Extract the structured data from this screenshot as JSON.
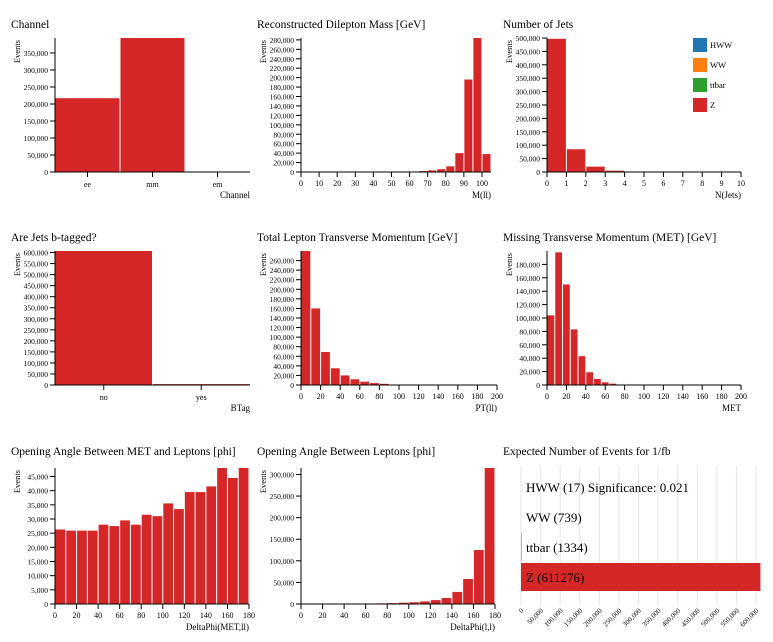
{
  "colors": {
    "HWW": "#1f77b4",
    "WW": "#ff7f0e",
    "ttbar": "#2ca02c",
    "Z": "#d62728",
    "bg_bar": "#dddddd"
  },
  "legend": [
    {
      "name": "HWW",
      "color": "#1f77b4"
    },
    {
      "name": "WW",
      "color": "#ff7f0e"
    },
    {
      "name": "ttbar",
      "color": "#2ca02c"
    },
    {
      "name": "Z",
      "color": "#d62728"
    }
  ],
  "chart_data": [
    {
      "id": "channel",
      "type": "bar",
      "title": "Channel",
      "xlabel": "Channel",
      "ylabel": "Events",
      "categories": [
        "ee",
        "mm",
        "em"
      ],
      "values": [
        217000,
        394000,
        0
      ],
      "ylim": [
        0,
        394000
      ],
      "yticks": [
        0,
        50000,
        100000,
        150000,
        200000,
        250000,
        300000,
        350000
      ],
      "yticklabels": [
        "0",
        "50,000",
        "100,000",
        "150,000",
        "200,000",
        "250,000",
        "300,000",
        "350,000"
      ]
    },
    {
      "id": "mll",
      "type": "bar",
      "title": "Reconstructed Dilepton Mass [GeV]",
      "xlabel": "M(ll)",
      "ylabel": "Events",
      "bin_edges": [
        0,
        5,
        10,
        15,
        20,
        25,
        30,
        35,
        40,
        45,
        50,
        55,
        60,
        65,
        70,
        75,
        80,
        85,
        90,
        95,
        100,
        105
      ],
      "values": [
        0,
        0,
        0,
        0,
        0,
        0,
        0,
        0,
        0,
        0,
        0,
        300,
        1000,
        2000,
        3500,
        6000,
        12000,
        40000,
        196000,
        284000,
        38000,
        11000
      ],
      "values_count_note": "",
      "xlim": [
        0,
        105
      ],
      "ylim": [
        0,
        284000
      ],
      "xticks": [
        0,
        10,
        20,
        30,
        40,
        50,
        60,
        70,
        80,
        90,
        100
      ],
      "xticklabels": [
        "0",
        "10",
        "20",
        "30",
        "40",
        "50",
        "60",
        "70",
        "80",
        "90",
        "100"
      ],
      "yticks": [
        0,
        20000,
        40000,
        60000,
        80000,
        100000,
        120000,
        140000,
        160000,
        180000,
        200000,
        220000,
        240000,
        260000,
        280000
      ],
      "yticklabels": [
        "0",
        "20,000",
        "40,000",
        "60,000",
        "80,000",
        "100,000",
        "120,000",
        "140,000",
        "160,000",
        "180,000",
        "200,000",
        "220,000",
        "240,000",
        "260,000",
        "280,000"
      ]
    },
    {
      "id": "njets",
      "type": "bar",
      "title": "Number of Jets",
      "xlabel": "N(Jets)",
      "ylabel": "Events",
      "bin_edges": [
        0,
        1,
        2,
        3,
        4,
        5,
        6,
        7,
        8,
        9,
        10
      ],
      "values": [
        497000,
        85000,
        20000,
        5000,
        1000,
        300,
        0,
        0,
        0,
        0
      ],
      "xlim": [
        0,
        10
      ],
      "ylim": [
        0,
        500000
      ],
      "xticks": [
        0,
        1,
        2,
        3,
        4,
        5,
        6,
        7,
        8,
        9,
        10
      ],
      "xticklabels": [
        "0",
        "1",
        "2",
        "3",
        "4",
        "5",
        "6",
        "7",
        "8",
        "9",
        "10"
      ],
      "yticks": [
        0,
        50000,
        100000,
        150000,
        200000,
        250000,
        300000,
        350000,
        400000,
        450000,
        500000
      ],
      "yticklabels": [
        "0",
        "50,000",
        "100,000",
        "150,000",
        "200,000",
        "250,000",
        "300,000",
        "350,000",
        "400,000",
        "450,000",
        "500,000"
      ]
    },
    {
      "id": "btag",
      "type": "bar",
      "title": "Are Jets b-tagged?",
      "xlabel": "BTag",
      "ylabel": "Events",
      "categories": [
        "no",
        "yes"
      ],
      "values": [
        607000,
        4000
      ],
      "ylim": [
        0,
        607000
      ],
      "yticks": [
        0,
        50000,
        100000,
        150000,
        200000,
        250000,
        300000,
        350000,
        400000,
        450000,
        500000,
        550000,
        600000
      ],
      "yticklabels": [
        "0",
        "50,000",
        "100,000",
        "150,000",
        "200,000",
        "250,000",
        "300,000",
        "350,000",
        "400,000",
        "450,000",
        "500,000",
        "550,000",
        "600,000"
      ]
    },
    {
      "id": "ptll",
      "type": "bar",
      "title": "Total Lepton Transverse Momentum [GeV]",
      "xlabel": "PT(ll)",
      "ylabel": "Events",
      "bin_edges": [
        0,
        10,
        20,
        30,
        40,
        50,
        60,
        70,
        80,
        90,
        100
      ],
      "values": [
        280000,
        160000,
        69000,
        35000,
        20000,
        12000,
        7000,
        4000,
        2500,
        1000
      ],
      "xlim": [
        0,
        200
      ],
      "ylim": [
        0,
        280000
      ],
      "xticks": [
        0,
        20,
        40,
        60,
        80,
        100,
        120,
        140,
        160,
        180,
        200
      ],
      "xticklabels": [
        "0",
        "20",
        "40",
        "60",
        "80",
        "100",
        "120",
        "140",
        "160",
        "180",
        "200"
      ],
      "yticks": [
        0,
        20000,
        40000,
        60000,
        80000,
        100000,
        120000,
        140000,
        160000,
        180000,
        200000,
        220000,
        240000,
        260000
      ],
      "yticklabels": [
        "0",
        "20,000",
        "40,000",
        "60,000",
        "80,000",
        "100,000",
        "120,000",
        "140,000",
        "160,000",
        "180,000",
        "200,000",
        "220,000",
        "240,000",
        "260,000"
      ]
    },
    {
      "id": "met",
      "type": "bar",
      "title": "Missing Transverse Momentum (MET) [GeV]",
      "xlabel": "MET",
      "ylabel": "Events",
      "bin_edges": [
        0,
        8,
        16,
        24,
        32,
        40,
        48,
        56,
        64,
        72,
        80
      ],
      "values": [
        104000,
        198000,
        150000,
        83000,
        43000,
        19000,
        9000,
        4000,
        2000,
        500
      ],
      "xlim": [
        0,
        200
      ],
      "ylim": [
        0,
        200000
      ],
      "xticks": [
        0,
        20,
        40,
        60,
        80,
        100,
        120,
        140,
        160,
        180,
        200
      ],
      "xticklabels": [
        "0",
        "20",
        "40",
        "60",
        "80",
        "100",
        "120",
        "140",
        "160",
        "180",
        "200"
      ],
      "yticks": [
        0,
        20000,
        40000,
        60000,
        80000,
        100000,
        120000,
        140000,
        160000,
        180000
      ],
      "yticklabels": [
        "0",
        "20,000",
        "40,000",
        "60,000",
        "80,000",
        "100,000",
        "120,000",
        "140,000",
        "160,000",
        "180,000"
      ]
    },
    {
      "id": "dphi_met_ll",
      "type": "bar",
      "title": "Opening Angle Between MET and Leptons [phi]",
      "xlabel": "DeltaPhi(MET,ll)",
      "ylabel": "Events",
      "bin_edges": [
        0,
        10,
        20,
        30,
        40,
        50,
        60,
        70,
        80,
        90,
        100,
        110,
        120,
        130,
        140,
        150,
        160,
        170,
        180
      ],
      "values": [
        26300,
        25900,
        25900,
        25900,
        28000,
        27500,
        29500,
        28000,
        31500,
        31000,
        35500,
        33500,
        39500,
        39500,
        41500,
        48000,
        44500,
        48000
      ],
      "xlim": [
        0,
        180
      ],
      "ylim": [
        0,
        48000
      ],
      "xticks": [
        0,
        20,
        40,
        60,
        80,
        100,
        120,
        140,
        160,
        180
      ],
      "xticklabels": [
        "0",
        "20",
        "40",
        "60",
        "80",
        "100",
        "120",
        "140",
        "160",
        "180"
      ],
      "yticks": [
        0,
        5000,
        10000,
        15000,
        20000,
        25000,
        30000,
        35000,
        40000,
        45000
      ],
      "yticklabels": [
        "0",
        "5,000",
        "10,000",
        "15,000",
        "20,000",
        "25,000",
        "30,000",
        "35,000",
        "40,000",
        "45,000"
      ]
    },
    {
      "id": "dphi_ll",
      "type": "bar",
      "title": "Opening Angle Between Leptons [phi]",
      "xlabel": "DeltaPhi(l,l)",
      "ylabel": "Events",
      "bin_edges": [
        0,
        10,
        20,
        30,
        40,
        50,
        60,
        70,
        80,
        90,
        100,
        110,
        120,
        130,
        140,
        150,
        160,
        170,
        180
      ],
      "values": [
        0,
        0,
        0,
        0,
        0,
        0,
        1000,
        1500,
        2000,
        3000,
        4000,
        6000,
        9000,
        14000,
        28000,
        58000,
        125000,
        315000
      ],
      "xlim": [
        0,
        180
      ],
      "ylim": [
        0,
        315000
      ],
      "xticks": [
        0,
        20,
        40,
        60,
        80,
        100,
        120,
        140,
        160,
        180
      ],
      "xticklabels": [
        "0",
        "20",
        "40",
        "60",
        "80",
        "100",
        "120",
        "140",
        "160",
        "180"
      ],
      "yticks": [
        0,
        50000,
        100000,
        150000,
        200000,
        250000,
        300000
      ],
      "yticklabels": [
        "0",
        "50,000",
        "100,000",
        "150,000",
        "200,000",
        "250,000",
        "300,000"
      ]
    },
    {
      "id": "expected",
      "type": "bar",
      "orientation": "horizontal",
      "title": "Expected Number of Events for 1/fb",
      "categories": [
        "HWW (17) Significance: 0.021",
        "WW (739)",
        "ttbar (1334)",
        "Z (611276)"
      ],
      "keys": [
        "HWW",
        "WW",
        "ttbar",
        "Z"
      ],
      "values": [
        17,
        739,
        1334,
        611276
      ],
      "xlim": [
        0,
        600000
      ],
      "xticks": [
        0,
        50000,
        100000,
        150000,
        200000,
        250000,
        300000,
        350000,
        400000,
        450000,
        500000,
        550000,
        600000
      ],
      "xticklabels": [
        "0",
        "50,000",
        "100,000",
        "150,000",
        "200,000",
        "250,000",
        "300,000",
        "350,000",
        "400,000",
        "450,000",
        "500,000",
        "550,000",
        "600,000"
      ]
    }
  ]
}
